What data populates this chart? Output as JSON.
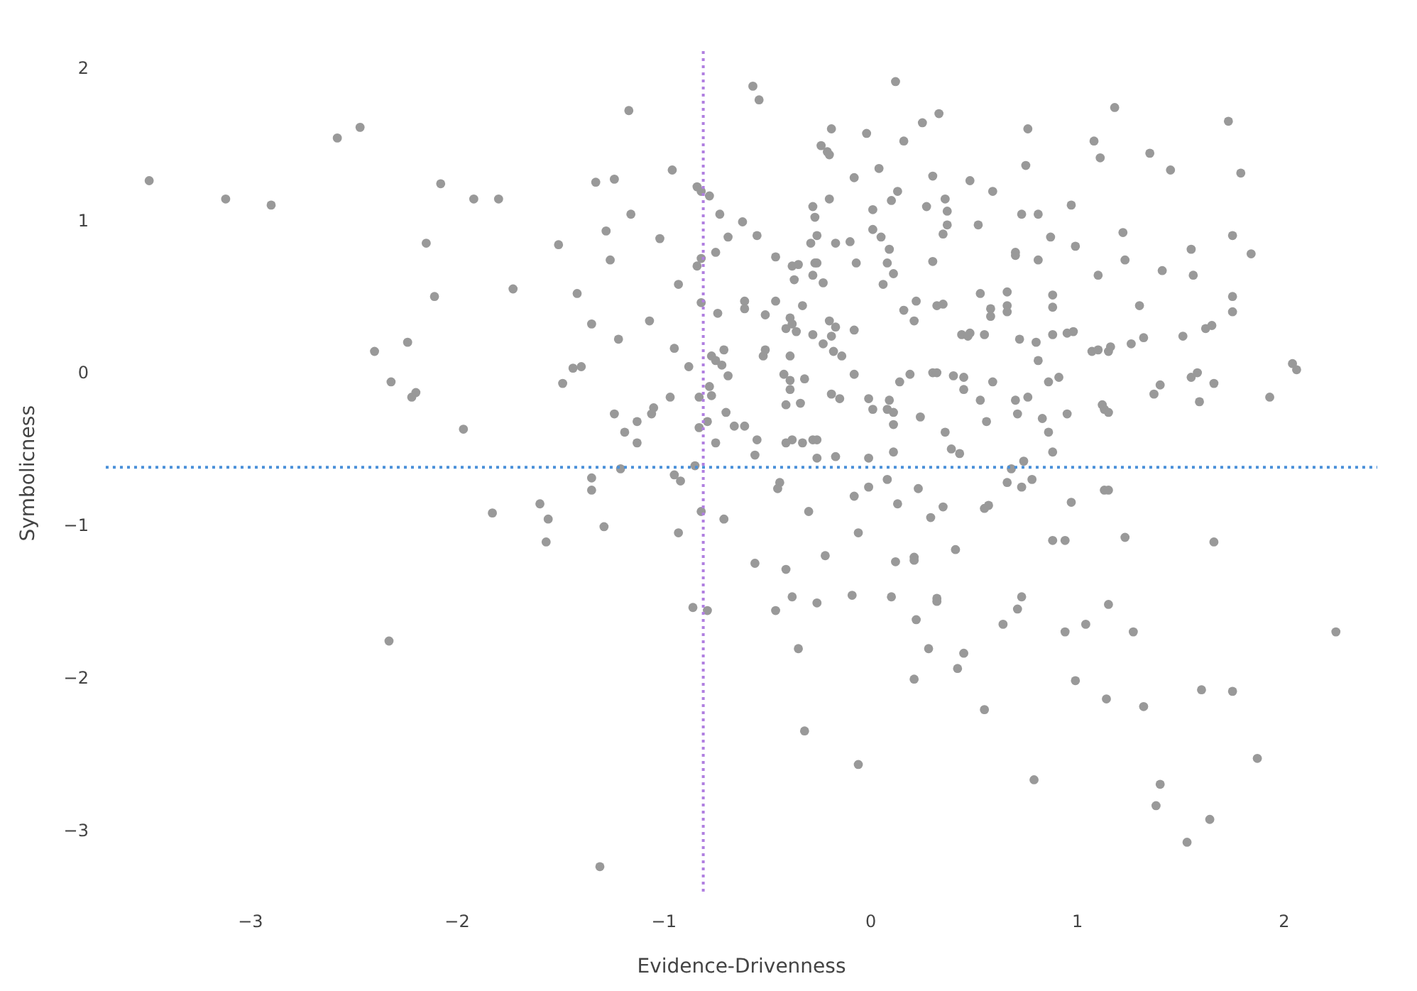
{
  "chart_data": {
    "type": "scatter",
    "xlabel": "Evidence-Drivenness",
    "ylabel": "Symbolicness",
    "color": "#999999",
    "marker": "circle",
    "grid": false,
    "legend": false,
    "xlim": [
      -3.7,
      2.45
    ],
    "ylim": [
      -3.42,
      2.12
    ],
    "xticks": [
      {
        "value": -3,
        "label": "−3"
      },
      {
        "value": -2,
        "label": "−2"
      },
      {
        "value": -1,
        "label": "−1"
      },
      0,
      1,
      2
    ],
    "yticks": [
      {
        "value": -3,
        "label": "−3"
      },
      {
        "value": -2,
        "label": "−2"
      },
      {
        "value": -1,
        "label": "−1"
      },
      0,
      1,
      2
    ],
    "ref_lines": [
      {
        "axis": "x",
        "value": -0.81,
        "color": "#b07fe0",
        "line_style": "dotted"
      },
      {
        "axis": "y",
        "value": -0.61,
        "color": "#4a90d9",
        "line_style": "dotted"
      }
    ],
    "x": [
      -3.49,
      -3.12,
      -2.9,
      -2.58,
      -2.47,
      -2.08,
      -1.92,
      -1.8,
      -2.15,
      -2.11,
      -1.73,
      -2.24,
      -2.4,
      -2.32,
      -2.2,
      -2.22,
      -1.97,
      -1.6,
      -1.83,
      -1.56,
      -1.57,
      -2.33,
      -0.57,
      -0.54,
      0.12,
      -1.17,
      -0.19,
      -0.02,
      0.25,
      0.33,
      0.16,
      -0.24,
      -0.21,
      -0.2,
      -1.33,
      -1.24,
      -0.96,
      0.04,
      -0.08,
      0.3,
      -0.84,
      -0.82,
      -0.78,
      -0.28,
      -0.2,
      0.01,
      0.1,
      0.13,
      0.27,
      0.36,
      0.37,
      0.37,
      0.35,
      -0.27,
      -1.16,
      -0.73,
      -0.62,
      -1.28,
      -1.02,
      -0.69,
      -0.55,
      -0.26,
      -0.29,
      -0.17,
      -0.1,
      0.01,
      0.05,
      0.09,
      -1.51,
      -1.26,
      -0.82,
      -0.84,
      -0.75,
      -0.46,
      -0.38,
      -0.35,
      -0.37,
      -0.27,
      -0.26,
      -0.28,
      -0.23,
      -0.07,
      0.08,
      0.11,
      0.06,
      0.3,
      -1.42,
      -0.93,
      -1.35,
      -1.07,
      -0.82,
      -0.74,
      -0.61,
      -0.61,
      -0.46,
      -0.51,
      -0.33,
      -0.39,
      -0.41,
      -0.38,
      -0.36,
      -0.28,
      -0.2,
      -0.17,
      -0.19,
      -0.23,
      -0.18,
      -0.14,
      -0.08,
      0.16,
      0.22,
      0.21,
      0.32,
      0.35,
      -1.22,
      -0.95,
      -1.44,
      -1.4,
      -1.49,
      -0.88,
      -0.77,
      -0.75,
      -0.71,
      -0.72,
      -0.69,
      -0.52,
      -0.51,
      -0.39,
      -0.42,
      -0.39,
      -0.39,
      -0.32,
      -0.08,
      0.19,
      0.14,
      0.3,
      0.32,
      -0.78,
      -0.77,
      -0.83,
      -0.97,
      -0.41,
      -0.34,
      -0.19,
      -0.15,
      -0.01,
      0.01,
      0.09,
      0.08,
      0.11,
      0.11,
      0.24,
      -1.24,
      -1.05,
      -1.06,
      -1.13,
      -1.19,
      -1.13,
      -0.7,
      -0.79,
      -0.83,
      -0.66,
      -0.61,
      -0.75,
      -0.55,
      -0.56,
      -0.41,
      -0.38,
      -0.33,
      -0.28,
      -0.26,
      -0.26,
      -0.17,
      -0.01,
      0.11,
      0.36,
      0.39,
      -0.85,
      -1.21,
      1.18,
      1.73,
      0.76,
      1.08,
      1.11,
      1.35,
      1.45,
      1.79,
      0.75,
      0.48,
      0.59,
      0.73,
      0.81,
      0.97,
      0.52,
      0.87,
      1.22,
      0.99,
      1.75,
      1.84,
      0.7,
      0.7,
      0.81,
      1.23,
      1.55,
      1.1,
      1.41,
      1.56,
      0.53,
      0.66,
      0.88,
      0.88,
      0.66,
      0.58,
      0.58,
      0.66,
      1.3,
      1.75,
      1.75,
      0.44,
      0.47,
      0.48,
      0.55,
      0.72,
      0.8,
      0.88,
      0.95,
      0.98,
      1.07,
      1.1,
      1.15,
      1.16,
      1.26,
      1.32,
      1.51,
      1.62,
      1.65,
      0.81,
      0.4,
      0.45,
      0.45,
      0.59,
      0.86,
      0.91,
      0.76,
      0.7,
      0.71,
      0.53,
      0.56,
      0.83,
      0.86,
      0.88,
      0.95,
      1.12,
      1.13,
      1.15,
      1.37,
      1.4,
      1.55,
      1.58,
      1.66,
      1.59,
      1.93,
      2.04,
      2.06,
      0.43,
      0.74,
      0.68,
      -1.35,
      -1.35,
      -1.29,
      -0.95,
      -0.92,
      -0.93,
      -0.82,
      -0.71,
      -0.86,
      -0.79,
      -1.31,
      -0.44,
      -0.45,
      -0.3,
      -0.08,
      -0.01,
      0.08,
      0.23,
      0.13,
      0.29,
      0.35,
      -0.06,
      -0.22,
      -0.56,
      -0.41,
      0.12,
      0.21,
      0.21,
      -0.38,
      -0.26,
      -0.46,
      -0.09,
      0.1,
      0.32,
      0.32,
      0.22,
      -0.35,
      0.28,
      0.21,
      -0.32,
      -0.06,
      0.66,
      0.73,
      0.78,
      1.13,
      1.15,
      0.97,
      0.55,
      0.57,
      0.41,
      0.88,
      0.94,
      1.23,
      1.66,
      0.73,
      0.71,
      0.64,
      1.15,
      0.94,
      1.04,
      1.27,
      2.25,
      0.45,
      0.42,
      0.99,
      1.14,
      1.32,
      1.6,
      1.75,
      0.55,
      1.87,
      0.79,
      1.4,
      1.38,
      1.64,
      1.53
    ],
    "values": [
      1.27,
      1.15,
      1.11,
      1.55,
      1.62,
      1.25,
      1.15,
      1.15,
      0.86,
      0.51,
      0.56,
      0.21,
      0.15,
      -0.05,
      -0.12,
      -0.15,
      -0.36,
      -0.85,
      -0.91,
      -0.95,
      -1.1,
      -1.75,
      1.89,
      1.8,
      1.92,
      1.73,
      1.61,
      1.58,
      1.65,
      1.71,
      1.53,
      1.5,
      1.46,
      1.44,
      1.26,
      1.28,
      1.34,
      1.35,
      1.29,
      1.3,
      1.23,
      1.2,
      1.17,
      1.1,
      1.15,
      1.08,
      1.14,
      1.2,
      1.1,
      1.15,
      1.07,
      0.98,
      0.92,
      1.03,
      1.05,
      1.05,
      1.0,
      0.94,
      0.89,
      0.9,
      0.91,
      0.91,
      0.86,
      0.86,
      0.87,
      0.95,
      0.9,
      0.82,
      0.85,
      0.75,
      0.76,
      0.71,
      0.8,
      0.77,
      0.71,
      0.72,
      0.62,
      0.73,
      0.73,
      0.65,
      0.6,
      0.73,
      0.73,
      0.66,
      0.59,
      0.74,
      0.53,
      0.59,
      0.33,
      0.35,
      0.47,
      0.4,
      0.48,
      0.43,
      0.48,
      0.39,
      0.45,
      0.37,
      0.3,
      0.33,
      0.28,
      0.26,
      0.35,
      0.31,
      0.25,
      0.2,
      0.15,
      0.12,
      0.29,
      0.42,
      0.48,
      0.35,
      0.45,
      0.46,
      0.23,
      0.17,
      0.04,
      0.05,
      -0.06,
      0.05,
      0.12,
      0.09,
      0.16,
      0.06,
      -0.01,
      0.12,
      0.16,
      0.12,
      0.0,
      -0.04,
      -0.1,
      -0.03,
      0.0,
      0.0,
      -0.05,
      0.01,
      0.01,
      -0.08,
      -0.14,
      -0.15,
      -0.15,
      -0.2,
      -0.19,
      -0.13,
      -0.16,
      -0.16,
      -0.23,
      -0.17,
      -0.23,
      -0.25,
      -0.33,
      -0.28,
      -0.26,
      -0.22,
      -0.26,
      -0.31,
      -0.38,
      -0.45,
      -0.25,
      -0.31,
      -0.35,
      -0.34,
      -0.34,
      -0.45,
      -0.43,
      -0.53,
      -0.45,
      -0.43,
      -0.45,
      -0.43,
      -0.43,
      -0.55,
      -0.54,
      -0.55,
      -0.51,
      -0.38,
      -0.49,
      -0.6,
      -0.62,
      1.75,
      1.66,
      1.61,
      1.53,
      1.42,
      1.45,
      1.34,
      1.32,
      1.37,
      1.27,
      1.2,
      1.05,
      1.05,
      1.11,
      0.98,
      0.9,
      0.93,
      0.84,
      0.91,
      0.79,
      0.8,
      0.78,
      0.75,
      0.75,
      0.82,
      0.65,
      0.68,
      0.65,
      0.53,
      0.54,
      0.52,
      0.44,
      0.45,
      0.43,
      0.38,
      0.41,
      0.45,
      0.51,
      0.41,
      0.26,
      0.25,
      0.27,
      0.26,
      0.23,
      0.21,
      0.26,
      0.27,
      0.28,
      0.15,
      0.16,
      0.15,
      0.18,
      0.2,
      0.24,
      0.25,
      0.3,
      0.32,
      0.09,
      -0.01,
      -0.02,
      -0.1,
      -0.05,
      -0.05,
      -0.02,
      -0.15,
      -0.17,
      -0.26,
      -0.17,
      -0.31,
      -0.29,
      -0.38,
      -0.51,
      -0.26,
      -0.2,
      -0.23,
      -0.25,
      -0.13,
      -0.07,
      -0.02,
      0.01,
      -0.06,
      -0.18,
      -0.15,
      0.07,
      0.03,
      -0.52,
      -0.57,
      -0.62,
      -0.68,
      -0.76,
      -1.0,
      -0.66,
      -0.7,
      -1.04,
      -0.9,
      -0.95,
      -1.53,
      -1.55,
      -3.23,
      -0.71,
      -0.75,
      -0.9,
      -0.8,
      -0.74,
      -0.69,
      -0.75,
      -0.85,
      -0.94,
      -0.87,
      -1.04,
      -1.19,
      -1.24,
      -1.28,
      -1.23,
      -1.2,
      -1.22,
      -1.46,
      -1.5,
      -1.55,
      -1.45,
      -1.46,
      -1.47,
      -1.49,
      -1.61,
      -1.8,
      -1.8,
      -2.0,
      -2.34,
      -2.56,
      -0.71,
      -0.74,
      -0.69,
      -0.76,
      -0.76,
      -0.84,
      -0.88,
      -0.86,
      -1.15,
      -1.09,
      -1.09,
      -1.07,
      -1.1,
      -1.46,
      -1.54,
      -1.64,
      -1.51,
      -1.69,
      -1.64,
      -1.69,
      -1.69,
      -1.83,
      -1.93,
      -2.01,
      -2.13,
      -2.18,
      -2.07,
      -2.08,
      -2.2,
      -2.52,
      -2.66,
      -2.69,
      -2.83,
      -2.92,
      -3.07
    ]
  }
}
